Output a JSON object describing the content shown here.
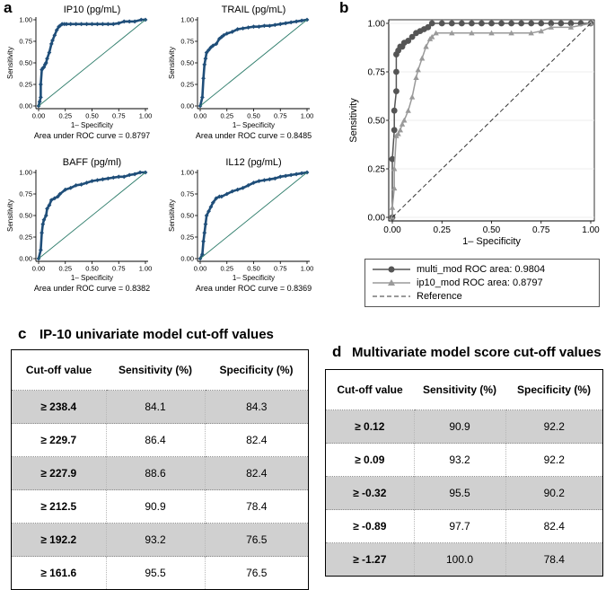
{
  "panels": {
    "a": "a",
    "b": "b",
    "c": "c",
    "d": "d"
  },
  "chart_data": [
    {
      "type": "line",
      "panel": "a",
      "title": "IP10 (pg/mL)",
      "xlabel": "1– Specificity",
      "ylabel": "Sensitivity",
      "xlim": [
        0,
        1
      ],
      "ylim": [
        0,
        1
      ],
      "xticks": [
        "0.00",
        "0.25",
        "0.50",
        "0.75",
        "1.00"
      ],
      "yticks": [
        "0.00",
        "0.25",
        "0.50",
        "0.75",
        "1.00"
      ],
      "note": "Area under ROC curve = 0.8797",
      "series": [
        {
          "name": "ROC",
          "x": [
            0,
            0.01,
            0.02,
            0.02,
            0.03,
            0.04,
            0.05,
            0.06,
            0.07,
            0.08,
            0.1,
            0.12,
            0.13,
            0.15,
            0.17,
            0.19,
            0.2,
            0.22,
            0.24,
            0.26,
            0.3,
            0.35,
            0.4,
            0.45,
            0.5,
            0.55,
            0.6,
            0.65,
            0.7,
            0.75,
            0.8,
            0.85,
            0.9,
            0.96,
            1.0
          ],
          "y": [
            0,
            0.05,
            0.1,
            0.25,
            0.42,
            0.44,
            0.45,
            0.48,
            0.5,
            0.55,
            0.62,
            0.72,
            0.76,
            0.82,
            0.88,
            0.92,
            0.93,
            0.95,
            0.95,
            0.95,
            0.95,
            0.95,
            0.95,
            0.95,
            0.95,
            0.95,
            0.95,
            0.95,
            0.95,
            0.96,
            0.98,
            0.98,
            0.98,
            1.0,
            1.0
          ]
        },
        {
          "name": "Reference",
          "x": [
            0,
            1
          ],
          "y": [
            0,
            1
          ]
        }
      ]
    },
    {
      "type": "line",
      "panel": "a",
      "title": "TRAIL (pg/mL)",
      "xlabel": "1– Specificity",
      "ylabel": "Sensitivity",
      "xlim": [
        0,
        1
      ],
      "ylim": [
        0,
        1
      ],
      "xticks": [
        "0.00",
        "0.25",
        "0.50",
        "0.75",
        "1.00"
      ],
      "yticks": [
        "0.00",
        "0.25",
        "0.50",
        "0.75",
        "1.00"
      ],
      "note": "Area under ROC curve = 0.8485",
      "series": [
        {
          "name": "ROC",
          "x": [
            0,
            0.02,
            0.03,
            0.04,
            0.05,
            0.06,
            0.08,
            0.1,
            0.12,
            0.15,
            0.18,
            0.2,
            0.22,
            0.25,
            0.3,
            0.35,
            0.4,
            0.45,
            0.5,
            0.55,
            0.6,
            0.65,
            0.7,
            0.75,
            0.8,
            0.85,
            0.9,
            0.95,
            1.0
          ],
          "y": [
            0,
            0.1,
            0.32,
            0.48,
            0.55,
            0.62,
            0.65,
            0.68,
            0.7,
            0.72,
            0.78,
            0.8,
            0.82,
            0.84,
            0.86,
            0.89,
            0.9,
            0.91,
            0.92,
            0.92,
            0.93,
            0.93,
            0.94,
            0.95,
            0.96,
            0.97,
            0.98,
            0.99,
            1.0
          ]
        },
        {
          "name": "Reference",
          "x": [
            0,
            1
          ],
          "y": [
            0,
            1
          ]
        }
      ]
    },
    {
      "type": "line",
      "panel": "a",
      "title": "BAFF (pg/ml)",
      "xlabel": "1– Specificity",
      "ylabel": "Sensitivity",
      "xlim": [
        0,
        1
      ],
      "ylim": [
        0,
        1
      ],
      "xticks": [
        "0.00",
        "0.25",
        "0.50",
        "0.75",
        "1.00"
      ],
      "yticks": [
        "0.00",
        "0.25",
        "0.50",
        "0.75",
        "1.00"
      ],
      "note": "Area under ROC curve = 0.8382",
      "series": [
        {
          "name": "ROC",
          "x": [
            0,
            0.02,
            0.03,
            0.04,
            0.05,
            0.07,
            0.08,
            0.1,
            0.12,
            0.15,
            0.18,
            0.2,
            0.25,
            0.3,
            0.35,
            0.4,
            0.45,
            0.5,
            0.55,
            0.6,
            0.65,
            0.7,
            0.75,
            0.8,
            0.85,
            0.9,
            0.95,
            1.0
          ],
          "y": [
            0,
            0.1,
            0.3,
            0.4,
            0.45,
            0.5,
            0.58,
            0.62,
            0.68,
            0.7,
            0.72,
            0.75,
            0.8,
            0.82,
            0.85,
            0.86,
            0.88,
            0.9,
            0.91,
            0.92,
            0.93,
            0.94,
            0.95,
            0.95,
            0.97,
            0.98,
            1.0,
            1.0
          ]
        },
        {
          "name": "Reference",
          "x": [
            0,
            1
          ],
          "y": [
            0,
            1
          ]
        }
      ]
    },
    {
      "type": "line",
      "panel": "a",
      "title": "IL12 (pg/mL)",
      "xlabel": "1– Specificity",
      "ylabel": "Sensitivity",
      "xlim": [
        0,
        1
      ],
      "ylim": [
        0,
        1
      ],
      "xticks": [
        "0.00",
        "0.25",
        "0.50",
        "0.75",
        "1.00"
      ],
      "yticks": [
        "0.00",
        "0.25",
        "0.50",
        "0.75",
        "1.00"
      ],
      "note": "Area under ROC curve = 0.8369",
      "series": [
        {
          "name": "ROC",
          "x": [
            0,
            0.02,
            0.03,
            0.04,
            0.05,
            0.06,
            0.08,
            0.1,
            0.12,
            0.15,
            0.18,
            0.2,
            0.25,
            0.3,
            0.35,
            0.4,
            0.45,
            0.5,
            0.55,
            0.6,
            0.65,
            0.7,
            0.75,
            0.8,
            0.85,
            0.9,
            0.95,
            1.0
          ],
          "y": [
            0,
            0.05,
            0.2,
            0.3,
            0.4,
            0.5,
            0.55,
            0.6,
            0.65,
            0.7,
            0.72,
            0.72,
            0.75,
            0.78,
            0.8,
            0.82,
            0.85,
            0.88,
            0.9,
            0.91,
            0.92,
            0.93,
            0.95,
            0.96,
            0.97,
            0.98,
            0.99,
            1.0
          ]
        },
        {
          "name": "Reference",
          "x": [
            0,
            1
          ],
          "y": [
            0,
            1
          ]
        }
      ]
    },
    {
      "type": "line",
      "panel": "b",
      "title": "",
      "xlabel": "1– Specificity",
      "ylabel": "Sensitivity",
      "xlim": [
        0,
        1
      ],
      "ylim": [
        0,
        1
      ],
      "xticks": [
        "0.00",
        "0.25",
        "0.50",
        "0.75",
        "1.00"
      ],
      "yticks": [
        "0.00",
        "0.25",
        "0.50",
        "0.75",
        "1.00"
      ],
      "legend": [
        "multi_mod ROC area: 0.9804",
        "ip10_mod ROC area: 0.8797",
        "Reference"
      ],
      "series": [
        {
          "name": "multi_mod ROC area: 0.9804",
          "x": [
            0,
            0.0,
            0.01,
            0.01,
            0.02,
            0.02,
            0.02,
            0.03,
            0.04,
            0.05,
            0.06,
            0.08,
            0.1,
            0.12,
            0.14,
            0.16,
            0.18,
            0.2,
            0.25,
            0.3,
            0.35,
            0.4,
            0.45,
            0.5,
            0.55,
            0.6,
            0.65,
            0.7,
            0.75,
            0.8,
            0.85,
            0.9,
            0.95,
            1.0
          ],
          "y": [
            0,
            0.3,
            0.45,
            0.55,
            0.65,
            0.75,
            0.84,
            0.86,
            0.88,
            0.88,
            0.9,
            0.91,
            0.93,
            0.95,
            0.96,
            0.97,
            0.98,
            1.0,
            1.0,
            1.0,
            1.0,
            1.0,
            1.0,
            1.0,
            1.0,
            1.0,
            1.0,
            1.0,
            1.0,
            1.0,
            1.0,
            1.0,
            1.0,
            1.0
          ]
        },
        {
          "name": "ip10_mod ROC area: 0.8797",
          "x": [
            0,
            0.0,
            0.01,
            0.01,
            0.02,
            0.03,
            0.04,
            0.05,
            0.06,
            0.08,
            0.1,
            0.12,
            0.13,
            0.15,
            0.17,
            0.19,
            0.2,
            0.22,
            0.3,
            0.4,
            0.5,
            0.6,
            0.7,
            0.75,
            0.8,
            0.9,
            1.0
          ],
          "y": [
            0,
            0.05,
            0.15,
            0.25,
            0.42,
            0.43,
            0.45,
            0.48,
            0.5,
            0.55,
            0.62,
            0.72,
            0.76,
            0.82,
            0.88,
            0.92,
            0.93,
            0.95,
            0.95,
            0.95,
            0.95,
            0.95,
            0.95,
            0.96,
            0.98,
            0.98,
            1.0
          ]
        },
        {
          "name": "Reference",
          "x": [
            0,
            1
          ],
          "y": [
            0,
            1
          ]
        }
      ]
    }
  ],
  "table_c": {
    "title": "IP-10 univariate model cut-off values",
    "headers": [
      "Cut-off value",
      "Sensitivity (%)",
      "Specificity (%)"
    ],
    "rows": [
      [
        "≥ 238.4",
        "84.1",
        "84.3"
      ],
      [
        "≥ 229.7",
        "86.4",
        "82.4"
      ],
      [
        "≥ 227.9",
        "88.6",
        "82.4"
      ],
      [
        "≥ 212.5",
        "90.9",
        "78.4"
      ],
      [
        "≥ 192.2",
        "93.2",
        "76.5"
      ],
      [
        "≥ 161.6",
        "95.5",
        "76.5"
      ]
    ]
  },
  "table_d": {
    "title": "Multivariate model score cut-off values",
    "headers": [
      "Cut-off value",
      "Sensitivity (%)",
      "Specificity (%)"
    ],
    "rows": [
      [
        "≥ 0.12",
        "90.9",
        "92.2"
      ],
      [
        "≥ 0.09",
        "93.2",
        "92.2"
      ],
      [
        "≥ -0.32",
        "95.5",
        "90.2"
      ],
      [
        "≥ -0.89",
        "97.7",
        "82.4"
      ],
      [
        "≥ -1.27",
        "100.0",
        "78.4"
      ]
    ]
  },
  "colors": {
    "roc_dark": "#1f4e79",
    "reference": "#2e7d6b",
    "multi": "#555555",
    "ip10": "#9a9a9a",
    "shade": "#d0d0d0"
  }
}
